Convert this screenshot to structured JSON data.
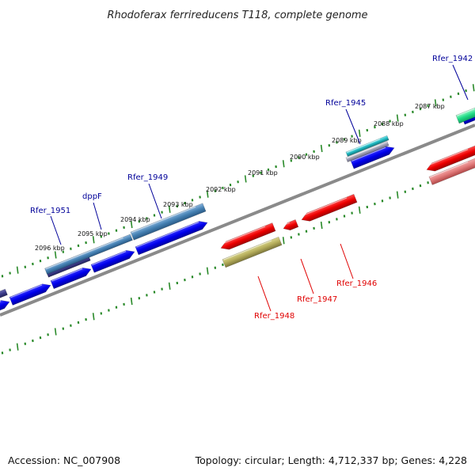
{
  "title": "Rhodoferax ferrireducens T118, complete genome",
  "footer": {
    "accession": "Accession: NC_007908",
    "summary": "Topology: circular; Length: 4,712,337 bp; Genes: 4,228"
  },
  "colors": {
    "forward_label": "#000099",
    "reverse_label": "#e00000",
    "backbone": "#8a8a8a",
    "tick": "#2a8a2a"
  },
  "kbp_labels": [
    "2096 kbp",
    "2095 kbp",
    "2094 kbp",
    "2093 kbp",
    "2092 kbp",
    "2091 kbp",
    "2090 kbp",
    "2089 kbp",
    "2088 kbp",
    "2087 kbp"
  ],
  "forward_gene_labels": [
    "Rfer_1951",
    "dppF",
    "Rfer_1949",
    "Rfer_1945",
    "Rfer_1942"
  ],
  "reverse_gene_labels": [
    "Rfer_1948",
    "Rfer_1947",
    "Rfer_1946"
  ]
}
